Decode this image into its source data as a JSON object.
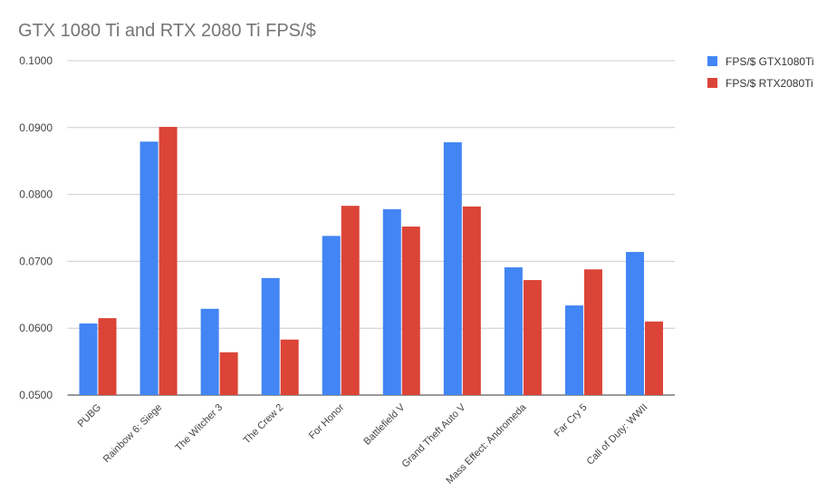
{
  "chart_data": {
    "type": "bar",
    "title": "GTX 1080 Ti and RTX 2080 Ti FPS/$",
    "xlabel": "",
    "ylabel": "",
    "ylim": [
      0.05,
      0.1
    ],
    "yticks": [
      "0.0500",
      "0.0600",
      "0.0700",
      "0.0800",
      "0.0900",
      "0.1000"
    ],
    "grid": true,
    "legend_position": "right",
    "categories": [
      "PUBG",
      "Rainbow 6: Siege",
      "The Witcher 3",
      "The Crew 2",
      "For Honor",
      "Battlefield V",
      "Grand Theft Auto V",
      "Mass Effect: Andromeda",
      "Far Cry 5",
      "Call of Duty: WWII"
    ],
    "series": [
      {
        "name": "FPS/$ GTX1080Ti",
        "color": "#4285f4",
        "values": [
          0.0607,
          0.0879,
          0.0629,
          0.0675,
          0.0738,
          0.0778,
          0.0878,
          0.0691,
          0.0634,
          0.0714
        ]
      },
      {
        "name": "FPS/$ RTX2080Ti",
        "color": "#db4437",
        "values": [
          0.0615,
          0.0901,
          0.0564,
          0.0583,
          0.0783,
          0.0752,
          0.0782,
          0.0672,
          0.0688,
          0.061
        ]
      }
    ]
  }
}
